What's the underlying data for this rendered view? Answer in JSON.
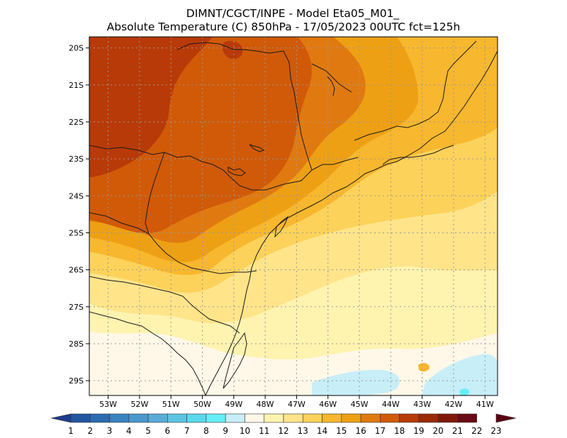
{
  "header": {
    "title_line1": "DIMNT/CGCT/INPE -  Model Eta05_M01_",
    "title_line2": "Absolute Temperature (C) 850hPa -  17/05/2023 00UTC fct=125h"
  },
  "map": {
    "lat_labels": [
      "20S",
      "21S",
      "22S",
      "23S",
      "24S",
      "25S",
      "26S",
      "27S",
      "28S",
      "29S"
    ],
    "lon_labels": [
      "53W",
      "52W",
      "51W",
      "50W",
      "49W",
      "48W",
      "47W",
      "46W",
      "45W",
      "44W",
      "43W",
      "42W",
      "41W"
    ],
    "lat_values": [
      -20,
      -21,
      -22,
      -23,
      -24,
      -25,
      -26,
      -27,
      -28,
      -29
    ],
    "lon_values": [
      -53,
      -52,
      -51,
      -50,
      -49,
      -48,
      -47,
      -46,
      -45,
      -44,
      -43,
      -42,
      -41
    ],
    "extent": {
      "lon_min": -53.6,
      "lon_max": -40.6,
      "lat_min": -29.4,
      "lat_max": -19.7
    }
  },
  "colorbar": {
    "labels": [
      "1",
      "2",
      "3",
      "4",
      "5",
      "6",
      "7",
      "8",
      "9",
      "10",
      "11",
      "12",
      "13",
      "14",
      "15",
      "16",
      "17",
      "18",
      "19",
      "20",
      "21",
      "22",
      "23"
    ],
    "colors": [
      "#1e3c8c",
      "#2356a0",
      "#2b6cb0",
      "#3a82be",
      "#4a98cc",
      "#58acd8",
      "#5cc4e4",
      "#5cd8ec",
      "#66eef6",
      "#c8eef8",
      "#fff8e8",
      "#fff3b0",
      "#ffe48a",
      "#fdd25a",
      "#f7b72e",
      "#eea014",
      "#e07a10",
      "#d05a08",
      "#b83a08",
      "#9a2a08",
      "#80180a",
      "#6a0a14",
      "#5a0014"
    ]
  }
}
